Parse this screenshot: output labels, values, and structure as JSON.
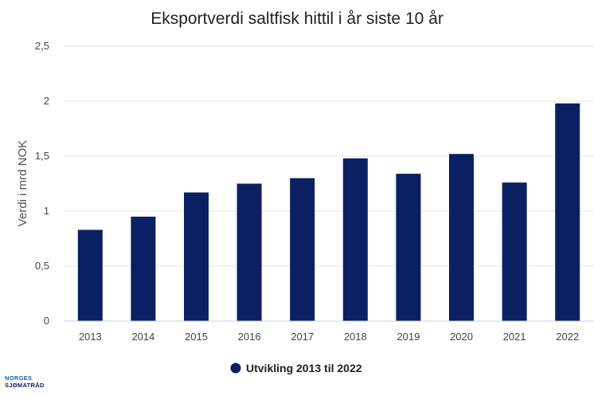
{
  "colors": {
    "bar": "#0b1f63",
    "grid": "#e6e6e6"
  },
  "logo": {
    "line1": "NORGES",
    "line2": "SJØMATRÅD"
  },
  "chart_data": {
    "type": "bar",
    "title": "Eksportverdi saltfisk hittil i år siste 10 år",
    "xlabel": "",
    "ylabel": "Verdi i mrd NOK",
    "ylim": [
      0,
      2.5
    ],
    "yticks": [
      "0",
      "0,5",
      "1",
      "1,5",
      "2",
      "2,5"
    ],
    "ytick_values": [
      0,
      0.5,
      1,
      1.5,
      2,
      2.5
    ],
    "grid": true,
    "legend_position": "bottom",
    "categories": [
      "2013",
      "2014",
      "2015",
      "2016",
      "2017",
      "2018",
      "2019",
      "2020",
      "2021",
      "2022"
    ],
    "series": [
      {
        "name": "Utvikling 2013 til 2022",
        "values": [
          0.83,
          0.95,
          1.17,
          1.25,
          1.3,
          1.48,
          1.34,
          1.52,
          1.26,
          1.98
        ]
      }
    ]
  }
}
